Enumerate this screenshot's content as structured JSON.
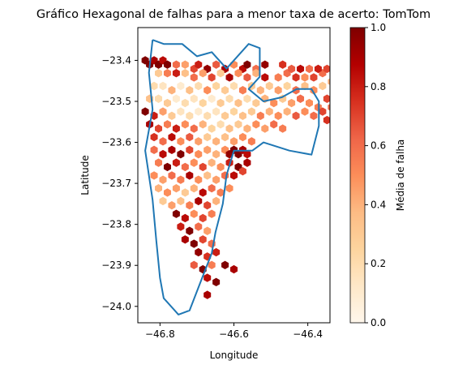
{
  "chart_data": {
    "type": "heatmap",
    "subtype": "hexbin-map",
    "title": "Gráfico Hexagonal de falhas para a menor taxa de acerto: TomTom",
    "xlabel": "Longitude",
    "ylabel": "Latitude",
    "xlim": [
      -46.86,
      -46.34
    ],
    "ylim": [
      -24.04,
      -23.32
    ],
    "xticks": [
      -46.8,
      -46.6,
      -46.4
    ],
    "xtick_labels": [
      "−46.8",
      "−46.6",
      "−46.4"
    ],
    "yticks": [
      -23.4,
      -23.5,
      -23.6,
      -23.7,
      -23.8,
      -23.9,
      -24.0
    ],
    "ytick_labels": [
      "−23.4",
      "−23.5",
      "−23.6",
      "−23.7",
      "−23.8",
      "−23.9",
      "−24.0"
    ],
    "colorbar": {
      "label": "Média de falha",
      "min": 0.0,
      "max": 1.0,
      "ticks": [
        0.0,
        0.2,
        0.4,
        0.6,
        0.8,
        1.0
      ],
      "tick_labels": [
        "0.0",
        "0.2",
        "0.4",
        "0.6",
        "0.8",
        "1.0"
      ],
      "colormap": "OrRd",
      "stops": [
        "#fff7ec",
        "#fee8c8",
        "#fdd49e",
        "#fdbb84",
        "#fc8d59",
        "#ef6548",
        "#d7301f",
        "#b30000",
        "#7f0000"
      ]
    },
    "boundary_color": "#1f77b4",
    "boundary": [
      [
        -46.82,
        -23.35
      ],
      [
        -46.79,
        -23.36
      ],
      [
        -46.74,
        -23.36
      ],
      [
        -46.7,
        -23.39
      ],
      [
        -46.66,
        -23.38
      ],
      [
        -46.62,
        -23.42
      ],
      [
        -46.6,
        -23.4
      ],
      [
        -46.58,
        -23.38
      ],
      [
        -46.56,
        -23.36
      ],
      [
        -46.53,
        -23.37
      ],
      [
        -46.53,
        -23.44
      ],
      [
        -46.56,
        -23.47
      ],
      [
        -46.52,
        -23.5
      ],
      [
        -46.47,
        -23.49
      ],
      [
        -46.43,
        -23.47
      ],
      [
        -46.39,
        -23.47
      ],
      [
        -46.37,
        -23.5
      ],
      [
        -46.37,
        -23.56
      ],
      [
        -46.39,
        -23.63
      ],
      [
        -46.45,
        -23.62
      ],
      [
        -46.52,
        -23.6
      ],
      [
        -46.55,
        -23.62
      ],
      [
        -46.6,
        -23.62
      ],
      [
        -46.62,
        -23.68
      ],
      [
        -46.63,
        -23.75
      ],
      [
        -46.65,
        -23.82
      ],
      [
        -46.66,
        -23.87
      ],
      [
        -46.69,
        -23.94
      ],
      [
        -46.72,
        -24.01
      ],
      [
        -46.75,
        -24.02
      ],
      [
        -46.79,
        -23.98
      ],
      [
        -46.8,
        -23.93
      ],
      [
        -46.81,
        -23.84
      ],
      [
        -46.82,
        -23.74
      ],
      [
        -46.84,
        -23.62
      ],
      [
        -46.82,
        -23.52
      ],
      [
        -46.83,
        -23.43
      ],
      [
        -46.82,
        -23.35
      ]
    ],
    "hexbin": {
      "grid_origin": [
        -46.84,
        -23.4
      ],
      "dx": 0.012,
      "dy": 0.0104,
      "cells": [
        [
          0,
          0,
          1.0
        ],
        [
          1,
          1,
          1.0
        ],
        [
          2,
          0,
          0.9
        ],
        [
          3,
          1,
          1.0
        ],
        [
          4,
          0,
          0.85
        ],
        [
          5,
          1,
          1.0
        ],
        [
          7,
          1,
          0.6
        ],
        [
          9,
          1,
          0.45
        ],
        [
          11,
          2,
          0.7
        ],
        [
          12,
          1,
          0.8
        ],
        [
          14,
          2,
          0.95
        ],
        [
          16,
          1,
          0.65
        ],
        [
          18,
          2,
          0.9
        ],
        [
          20,
          1,
          0.5
        ],
        [
          22,
          2,
          0.85
        ],
        [
          23,
          1,
          1.0
        ],
        [
          25,
          2,
          0.6
        ],
        [
          27,
          1,
          0.95
        ],
        [
          3,
          3,
          0.3
        ],
        [
          5,
          3,
          0.55
        ],
        [
          7,
          3,
          0.8
        ],
        [
          9,
          3,
          0.35
        ],
        [
          11,
          4,
          0.6
        ],
        [
          13,
          3,
          0.45
        ],
        [
          15,
          4,
          0.7
        ],
        [
          17,
          3,
          0.3
        ],
        [
          19,
          4,
          0.9
        ],
        [
          21,
          3,
          0.5
        ],
        [
          23,
          4,
          0.65
        ],
        [
          25,
          3,
          0.4
        ],
        [
          27,
          4,
          0.85
        ],
        [
          30,
          4,
          0.55
        ],
        [
          32,
          3,
          0.6
        ],
        [
          34,
          4,
          0.75
        ],
        [
          36,
          4,
          0.5
        ],
        [
          38,
          4,
          0.7
        ],
        [
          40,
          3,
          0.6
        ],
        [
          42,
          5,
          0.4
        ],
        [
          2,
          6,
          0.2
        ],
        [
          4,
          6,
          0.15
        ],
        [
          6,
          7,
          0.4
        ],
        [
          8,
          6,
          0.1
        ],
        [
          10,
          7,
          0.35
        ],
        [
          12,
          6,
          0.2
        ],
        [
          14,
          7,
          0.5
        ],
        [
          16,
          6,
          0.25
        ],
        [
          18,
          7,
          0.3
        ],
        [
          20,
          6,
          0.2
        ],
        [
          22,
          7,
          0.55
        ],
        [
          24,
          6,
          0.3
        ],
        [
          26,
          7,
          0.4
        ],
        [
          28,
          6,
          0.3
        ],
        [
          30,
          7,
          0.45
        ],
        [
          32,
          6,
          0.25
        ],
        [
          34,
          7,
          0.6
        ],
        [
          36,
          6,
          0.35
        ],
        [
          38,
          7,
          0.5
        ],
        [
          40,
          6,
          0.3
        ],
        [
          41,
          9,
          0.7
        ],
        [
          43,
          8,
          0.55
        ],
        [
          44,
          7,
          0.95
        ],
        [
          45,
          9,
          0.6
        ],
        [
          46,
          8,
          0.8
        ],
        [
          47,
          7,
          0.9
        ],
        [
          48,
          6,
          1.0
        ],
        [
          47,
          5,
          0.7
        ],
        [
          45,
          4,
          0.65
        ],
        [
          46,
          3,
          1.0
        ],
        [
          39,
          2,
          0.8
        ],
        [
          41,
          2,
          0.7
        ],
        [
          31,
          1,
          0.75
        ],
        [
          33,
          2,
          0.65
        ],
        [
          35,
          2,
          0.85
        ],
        [
          37,
          2,
          0.6
        ],
        [
          1,
          9,
          0.35
        ],
        [
          3,
          9,
          0.2
        ],
        [
          5,
          10,
          0.3
        ],
        [
          7,
          9,
          0.1
        ],
        [
          9,
          10,
          0.2
        ],
        [
          11,
          9,
          0.15
        ],
        [
          13,
          10,
          0.25
        ],
        [
          15,
          9,
          0.1
        ],
        [
          17,
          10,
          0.3
        ],
        [
          19,
          9,
          0.2
        ],
        [
          21,
          10,
          0.35
        ],
        [
          23,
          9,
          0.2
        ],
        [
          25,
          10,
          0.3
        ],
        [
          27,
          9,
          0.4
        ],
        [
          29,
          10,
          0.5
        ],
        [
          31,
          9,
          0.3
        ],
        [
          33,
          10,
          0.45
        ],
        [
          35,
          9,
          0.6
        ],
        [
          37,
          10,
          0.5
        ],
        [
          39,
          11,
          0.55
        ],
        [
          40,
          12,
          0.7
        ],
        [
          42,
          11,
          0.6
        ],
        [
          44,
          12,
          0.8
        ],
        [
          45,
          13,
          0.9
        ],
        [
          43,
          14,
          0.65
        ],
        [
          41,
          14,
          0.75
        ],
        [
          38,
          13,
          0.6
        ],
        [
          36,
          12,
          0.5
        ],
        [
          34,
          13,
          0.65
        ],
        [
          32,
          12,
          0.4
        ],
        [
          0,
          12,
          1.0
        ],
        [
          2,
          13,
          0.8
        ],
        [
          4,
          12,
          0.45
        ],
        [
          6,
          13,
          0.3
        ],
        [
          8,
          12,
          0.15
        ],
        [
          10,
          13,
          0.2
        ],
        [
          12,
          12,
          0.1
        ],
        [
          14,
          13,
          0.2
        ],
        [
          16,
          12,
          0.15
        ],
        [
          18,
          13,
          0.3
        ],
        [
          20,
          12,
          0.25
        ],
        [
          22,
          13,
          0.35
        ],
        [
          24,
          12,
          0.3
        ],
        [
          26,
          13,
          0.55
        ],
        [
          28,
          12,
          0.4
        ],
        [
          30,
          13,
          0.5
        ],
        [
          1,
          15,
          0.9
        ],
        [
          3,
          16,
          0.7
        ],
        [
          5,
          15,
          0.55
        ],
        [
          7,
          16,
          0.8
        ],
        [
          9,
          15,
          0.5
        ],
        [
          11,
          16,
          0.6
        ],
        [
          13,
          15,
          0.4
        ],
        [
          15,
          16,
          0.25
        ],
        [
          17,
          15,
          0.2
        ],
        [
          19,
          16,
          0.35
        ],
        [
          21,
          15,
          0.3
        ],
        [
          23,
          16,
          0.4
        ],
        [
          25,
          15,
          0.5
        ],
        [
          27,
          16,
          0.45
        ],
        [
          29,
          15,
          0.6
        ],
        [
          31,
          16,
          0.55
        ],
        [
          2,
          18,
          0.75
        ],
        [
          4,
          19,
          0.6
        ],
        [
          6,
          18,
          0.85
        ],
        [
          8,
          19,
          0.5
        ],
        [
          10,
          18,
          0.65
        ],
        [
          12,
          19,
          0.45
        ],
        [
          14,
          18,
          0.3
        ],
        [
          16,
          19,
          0.4
        ],
        [
          18,
          18,
          0.35
        ],
        [
          20,
          19,
          0.45
        ],
        [
          22,
          18,
          0.5
        ],
        [
          24,
          19,
          0.55
        ],
        [
          2,
          21,
          0.6
        ],
        [
          4,
          22,
          0.85
        ],
        [
          6,
          21,
          0.9
        ],
        [
          8,
          22,
          1.0
        ],
        [
          10,
          21,
          0.7
        ],
        [
          12,
          22,
          0.5
        ],
        [
          14,
          21,
          0.45
        ],
        [
          16,
          22,
          0.4
        ],
        [
          18,
          21,
          0.5
        ],
        [
          19,
          22,
          0.95
        ],
        [
          20,
          21,
          1.0
        ],
        [
          21,
          22,
          1.0
        ],
        [
          22,
          21,
          0.9
        ],
        [
          23,
          22,
          0.85
        ],
        [
          3,
          24,
          0.55
        ],
        [
          5,
          25,
          1.0
        ],
        [
          7,
          24,
          0.8
        ],
        [
          9,
          25,
          0.6
        ],
        [
          11,
          24,
          0.5
        ],
        [
          13,
          25,
          0.7
        ],
        [
          15,
          24,
          0.4
        ],
        [
          17,
          25,
          0.5
        ],
        [
          19,
          24,
          0.8
        ],
        [
          21,
          25,
          1.0
        ],
        [
          23,
          24,
          0.9
        ],
        [
          22,
          26,
          0.7
        ],
        [
          20,
          27,
          0.85
        ],
        [
          2,
          27,
          0.5
        ],
        [
          4,
          28,
          0.45
        ],
        [
          6,
          27,
          0.6
        ],
        [
          8,
          28,
          0.55
        ],
        [
          10,
          27,
          0.9
        ],
        [
          12,
          28,
          0.5
        ],
        [
          14,
          27,
          0.35
        ],
        [
          16,
          28,
          0.45
        ],
        [
          18,
          27,
          0.6
        ],
        [
          3,
          30,
          0.4
        ],
        [
          5,
          31,
          0.5
        ],
        [
          7,
          30,
          0.45
        ],
        [
          9,
          31,
          0.3
        ],
        [
          11,
          30,
          0.4
        ],
        [
          13,
          31,
          0.85
        ],
        [
          15,
          30,
          0.6
        ],
        [
          17,
          31,
          0.55
        ],
        [
          19,
          30,
          0.5
        ],
        [
          4,
          33,
          0.3
        ],
        [
          6,
          34,
          0.45
        ],
        [
          8,
          33,
          0.35
        ],
        [
          10,
          34,
          0.55
        ],
        [
          12,
          33,
          0.9
        ],
        [
          14,
          34,
          0.7
        ],
        [
          16,
          33,
          0.4
        ],
        [
          7,
          36,
          1.0
        ],
        [
          9,
          37,
          0.85
        ],
        [
          11,
          36,
          0.5
        ],
        [
          13,
          37,
          0.7
        ],
        [
          15,
          36,
          0.55
        ],
        [
          8,
          39,
          0.8
        ],
        [
          10,
          40,
          1.0
        ],
        [
          12,
          39,
          0.6
        ],
        [
          14,
          40,
          0.45
        ],
        [
          9,
          42,
          0.9
        ],
        [
          11,
          43,
          1.0
        ],
        [
          13,
          42,
          0.7
        ],
        [
          15,
          43,
          0.6
        ],
        [
          12,
          45,
          0.95
        ],
        [
          14,
          46,
          0.75
        ],
        [
          16,
          45,
          0.8
        ],
        [
          11,
          48,
          0.65
        ],
        [
          13,
          49,
          1.0
        ],
        [
          15,
          48,
          0.55
        ],
        [
          18,
          48,
          1.0
        ],
        [
          20,
          49,
          0.9
        ],
        [
          14,
          51,
          0.85
        ],
        [
          16,
          52,
          1.0
        ],
        [
          14,
          55,
          0.9
        ]
      ]
    }
  }
}
